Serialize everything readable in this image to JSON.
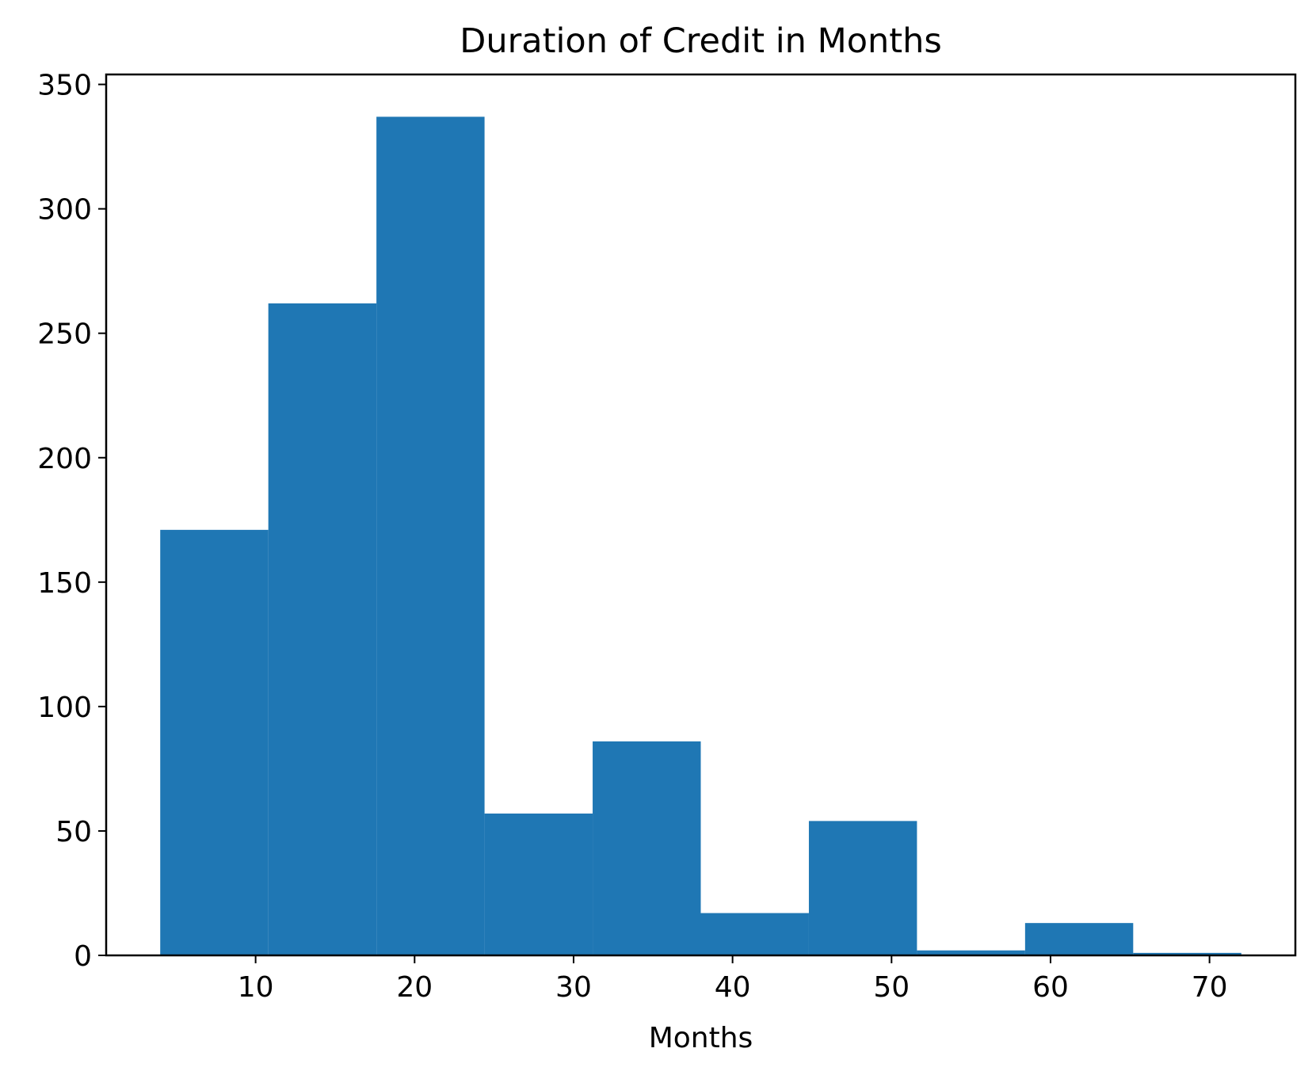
{
  "chart_data": {
    "type": "bar",
    "title": "Duration of Credit in Months",
    "xlabel": "Months",
    "ylabel": "",
    "xlim": [
      0.6,
      75.4
    ],
    "ylim": [
      0,
      354
    ],
    "xticks": [
      10,
      20,
      30,
      40,
      50,
      60,
      70
    ],
    "yticks": [
      0,
      50,
      100,
      150,
      200,
      250,
      300,
      350
    ],
    "bins": [
      {
        "start": 4.0,
        "end": 10.8,
        "value": 171
      },
      {
        "start": 10.8,
        "end": 17.6,
        "value": 262
      },
      {
        "start": 17.6,
        "end": 24.4,
        "value": 337
      },
      {
        "start": 24.4,
        "end": 31.2,
        "value": 57
      },
      {
        "start": 31.2,
        "end": 38.0,
        "value": 86
      },
      {
        "start": 38.0,
        "end": 44.8,
        "value": 17
      },
      {
        "start": 44.8,
        "end": 51.6,
        "value": 54
      },
      {
        "start": 51.6,
        "end": 58.4,
        "value": 2
      },
      {
        "start": 58.4,
        "end": 65.2,
        "value": 13
      },
      {
        "start": 65.2,
        "end": 72.0,
        "value": 1
      }
    ],
    "bar_color": "#1f77b4",
    "grid": false,
    "legend": "none"
  }
}
